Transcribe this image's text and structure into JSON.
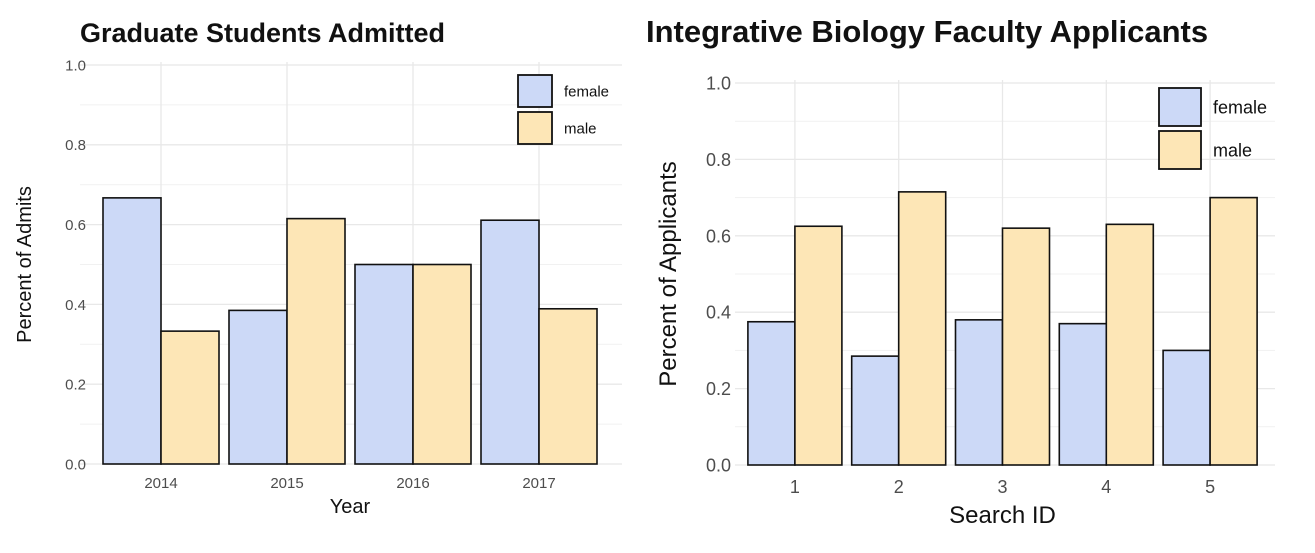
{
  "chart_data": [
    {
      "type": "bar",
      "title": "Graduate Students Admitted",
      "xlabel": "Year",
      "ylabel": "Percent of Admits",
      "categories": [
        "2014",
        "2015",
        "2016",
        "2017"
      ],
      "series": [
        {
          "name": "female",
          "values": [
            0.667,
            0.385,
            0.5,
            0.611
          ]
        },
        {
          "name": "male",
          "values": [
            0.333,
            0.615,
            0.5,
            0.389
          ]
        }
      ],
      "ylim": [
        0,
        1
      ],
      "yticks": [
        "0.0",
        "0.2",
        "0.4",
        "0.6",
        "0.8",
        "1.0"
      ],
      "grid": true,
      "legend": "top-right"
    },
    {
      "type": "bar",
      "title": "Integrative Biology Faculty Applicants",
      "xlabel": "Search ID",
      "ylabel": "Percent of Applicants",
      "categories": [
        "1",
        "2",
        "3",
        "4",
        "5"
      ],
      "series": [
        {
          "name": "female",
          "values": [
            0.375,
            0.285,
            0.38,
            0.37,
            0.3
          ]
        },
        {
          "name": "male",
          "values": [
            0.625,
            0.715,
            0.62,
            0.63,
            0.7
          ]
        }
      ],
      "ylim": [
        0,
        1
      ],
      "yticks": [
        "0.0",
        "0.2",
        "0.4",
        "0.6",
        "0.8",
        "1.0"
      ],
      "grid": true,
      "legend": "top-right"
    }
  ],
  "colors": {
    "female": "#ccd9f7",
    "male": "#fde6b6",
    "outline": "#111111",
    "grid": "#e8e8e8"
  }
}
